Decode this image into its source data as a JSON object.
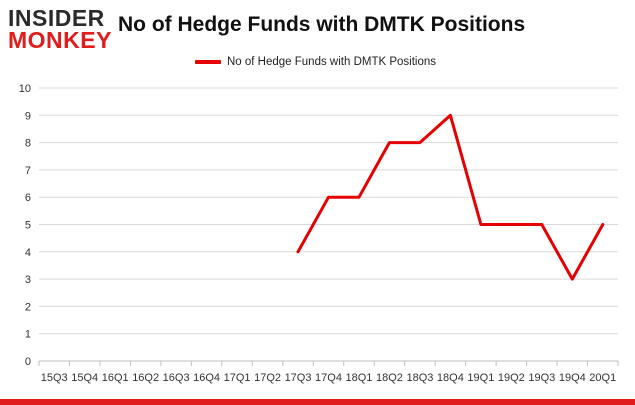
{
  "logo": {
    "line1": "INSIDER",
    "line2": "MONKEY"
  },
  "colors": {
    "series": "#e60000",
    "grid": "#d9d9d9",
    "brand_red": "#e11c1c"
  },
  "chart_data": {
    "type": "line",
    "title": "No of Hedge Funds with DMTK Positions",
    "xlabel": "",
    "ylabel": "",
    "categories": [
      "15Q3",
      "15Q4",
      "16Q1",
      "16Q2",
      "16Q3",
      "16Q4",
      "17Q1",
      "17Q2",
      "17Q3",
      "17Q4",
      "18Q1",
      "18Q2",
      "18Q3",
      "18Q4",
      "19Q1",
      "19Q2",
      "19Q3",
      "19Q4",
      "20Q1"
    ],
    "series": [
      {
        "name": "No of Hedge Funds with DMTK Positions",
        "values": [
          null,
          null,
          null,
          null,
          null,
          null,
          null,
          null,
          4,
          6,
          6,
          8,
          8,
          9,
          5,
          5,
          5,
          3,
          5
        ]
      }
    ],
    "ylim": [
      0,
      10
    ],
    "yticks": [
      0,
      1,
      2,
      3,
      4,
      5,
      6,
      7,
      8,
      9,
      10
    ],
    "grid": "horizontal",
    "legend": "top-center"
  }
}
